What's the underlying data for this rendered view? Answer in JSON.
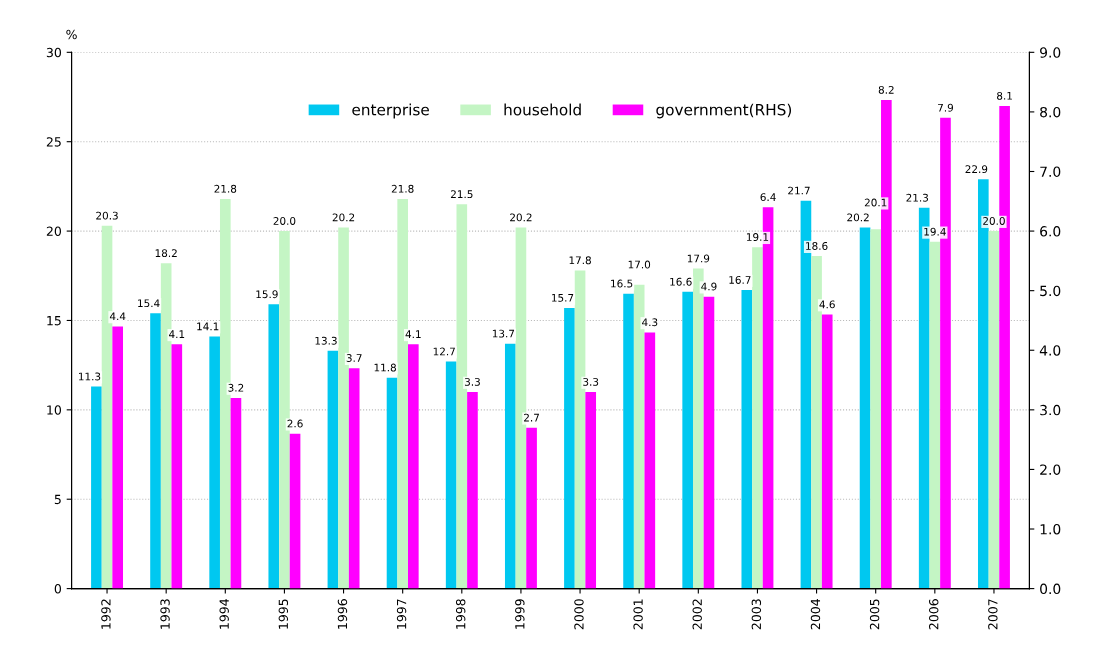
{
  "chart_data": {
    "type": "bar",
    "ylabel": "%",
    "categories": [
      "1992",
      "1993",
      "1994",
      "1995",
      "1996",
      "1997",
      "1998",
      "1999",
      "2000",
      "2001",
      "2002",
      "2003",
      "2004",
      "2005",
      "2006",
      "2007"
    ],
    "series": [
      {
        "name": "enterprise",
        "color": "#00c8f0",
        "values": [
          11.3,
          15.4,
          14.1,
          15.9,
          13.3,
          11.8,
          12.7,
          13.7,
          15.7,
          16.5,
          16.6,
          16.7,
          21.7,
          20.2,
          21.3,
          22.9
        ],
        "value_labels": [
          "11.3",
          "15.4",
          "14.1",
          "15.9",
          "13.3",
          "11.8",
          "12.7",
          "13.7",
          "15.7",
          "16.5",
          "16.6",
          "16.7",
          "21.7",
          "20.2",
          "21.3",
          "22.9"
        ]
      },
      {
        "name": "household",
        "color": "#c4f5c4",
        "values": [
          20.3,
          18.2,
          21.8,
          20.0,
          20.2,
          21.8,
          21.5,
          20.2,
          17.8,
          17.0,
          17.9,
          19.1,
          18.6,
          20.1,
          19.4,
          20.0
        ],
        "value_labels": [
          "20.3",
          "18.2",
          "21.8",
          "20.0",
          "20.2",
          "21.8",
          "21.5",
          "20.2",
          "17.8",
          "17.0",
          "17.9",
          "19.1",
          "18.6",
          "20.1",
          "19.4",
          "20.0"
        ]
      },
      {
        "name": "government(RHS)",
        "color": "#ff00ff",
        "axis": "y2",
        "values": [
          4.4,
          4.1,
          3.2,
          2.6,
          3.7,
          4.1,
          3.3,
          2.7,
          3.3,
          4.3,
          4.9,
          6.4,
          4.6,
          8.2,
          7.9,
          8.1
        ],
        "value_labels": [
          "4.4",
          "4.1",
          "3.2",
          "2.6",
          "3.7",
          "4.1",
          "3.3",
          "2.7",
          "3.3",
          "4.3",
          "4.9",
          "6.4",
          "4.6",
          "8.2",
          "7.9",
          "8.1"
        ]
      }
    ],
    "ylim": [
      0,
      30
    ],
    "yticks": [
      0,
      5,
      10,
      15,
      20,
      25,
      30
    ],
    "y2lim": [
      0,
      9
    ],
    "y2ticks": [
      {
        "value": 0,
        "label": "0.0"
      },
      {
        "value": 1,
        "label": "1.0"
      },
      {
        "value": 2,
        "label": "2.0"
      },
      {
        "value": 3,
        "label": "3.0"
      },
      {
        "value": 4,
        "label": "4.0"
      },
      {
        "value": 5,
        "label": "5.0"
      },
      {
        "value": 6,
        "label": "6.0"
      },
      {
        "value": 7,
        "label": "7.0"
      },
      {
        "value": 8,
        "label": "8.0"
      },
      {
        "value": 9,
        "label": "9.0"
      }
    ],
    "grid": "y",
    "legend": "top"
  }
}
